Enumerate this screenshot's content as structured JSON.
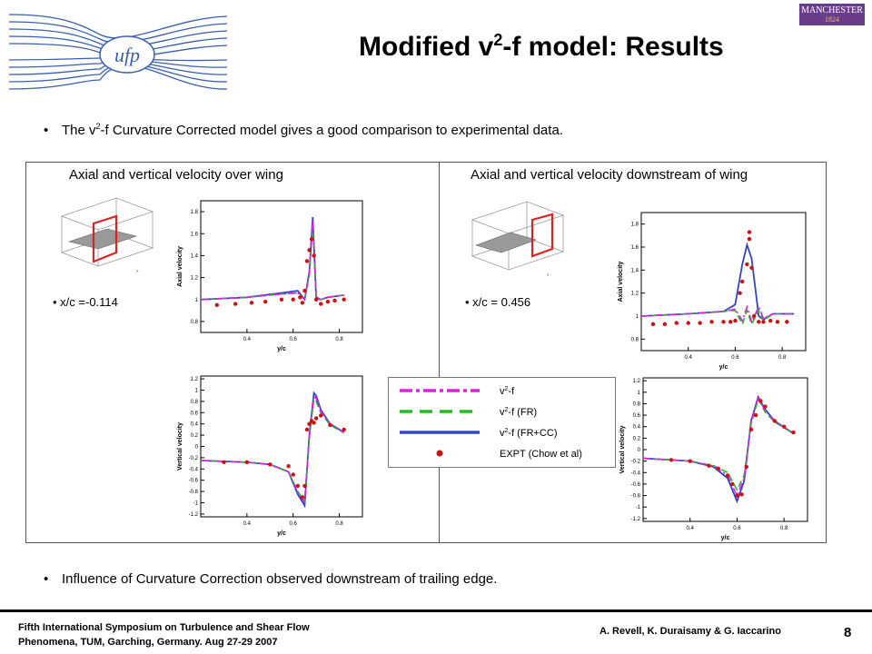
{
  "header": {
    "title_prefix": "Modified v",
    "title_sup": "2",
    "title_suffix": "-f model: Results",
    "left_logo_text": "ufp",
    "right_logo_text": "MANCHESTER",
    "right_logo_year": "1824"
  },
  "bullets": {
    "first": {
      "pre": "The v",
      "sup": "2",
      "post": "-f Curvature Corrected model gives a good comparison to experimental data."
    },
    "second": "Influence of Curvature Correction observed downstream of trailing edge."
  },
  "panels": {
    "left": {
      "title": "Axial and vertical velocity over wing",
      "location": "x/c =-0.114"
    },
    "right": {
      "title": "Axial and vertical velocity downstream of wing",
      "location": "x/c = 0.456"
    }
  },
  "axes_text": {
    "x_label": "y/c",
    "axial_label": "Axial velocity",
    "vertical_label": "Vertical velocity",
    "x_ticks": [
      "0.4",
      "0.6",
      "0.8"
    ],
    "axial_ticks": [
      "0.8",
      "1",
      "1.2",
      "1.4",
      "1.6",
      "1.8"
    ],
    "vertical_ticks": [
      "-1.2",
      "-1",
      "-0.8",
      "-0.6",
      "-0.4",
      "-0.2",
      "0",
      "0.2",
      "0.4",
      "0.6",
      "0.8",
      "1",
      "1.2"
    ]
  },
  "legend": {
    "entries": [
      {
        "pre": "v",
        "sup": "2",
        "post": "-f",
        "color": "#dd22dd",
        "style": "dashdot"
      },
      {
        "pre": "v",
        "sup": "2",
        "post": "-f (FR)",
        "color": "#22bb22",
        "style": "dash"
      },
      {
        "pre": "v",
        "sup": "2",
        "post": "-f (FR+CC)",
        "color": "#3344cc",
        "style": "solid"
      },
      {
        "pre": "",
        "sup": "",
        "post": "EXPT (Chow et al)",
        "color": "#cc1111",
        "style": "dot"
      }
    ]
  },
  "colors": {
    "v2f": "#dd22dd",
    "v2f_fr": "#22bb22",
    "v2f_frcc": "#3344cc",
    "expt": "#cc1111"
  },
  "chart_data": [
    {
      "type": "line",
      "id": "axial-left",
      "xlabel": "y/c",
      "ylabel": "Axial velocity",
      "xlim": [
        0.2,
        0.9
      ],
      "ylim": [
        0.7,
        1.9
      ],
      "xticks": [
        0.4,
        0.6,
        0.8
      ],
      "yticks": [
        0.8,
        1.0,
        1.2,
        1.4,
        1.6,
        1.8
      ],
      "series": [
        {
          "name": "v2-f (FR+CC)",
          "style": "solid",
          "x": [
            0.2,
            0.4,
            0.55,
            0.62,
            0.65,
            0.67,
            0.685,
            0.7,
            0.72,
            0.75,
            0.82
          ],
          "y": [
            1.0,
            1.02,
            1.06,
            1.08,
            1.0,
            1.25,
            1.75,
            1.02,
            1.0,
            1.02,
            1.04
          ]
        },
        {
          "name": "v2-f (FR)",
          "style": "dash",
          "x": [
            0.2,
            0.4,
            0.55,
            0.62,
            0.65,
            0.67,
            0.685,
            0.7,
            0.72,
            0.75,
            0.82
          ],
          "y": [
            1.0,
            1.02,
            1.05,
            1.06,
            1.0,
            1.22,
            1.68,
            1.0,
            1.0,
            1.02,
            1.04
          ]
        },
        {
          "name": "v2-f",
          "style": "dashdot",
          "x": [
            0.2,
            0.4,
            0.55,
            0.62,
            0.65,
            0.67,
            0.685,
            0.7,
            0.72,
            0.75,
            0.82
          ],
          "y": [
            1.0,
            1.02,
            1.05,
            1.06,
            1.0,
            1.24,
            1.72,
            1.01,
            1.0,
            1.02,
            1.04
          ]
        },
        {
          "name": "EXPT (Chow et al)",
          "style": "dot",
          "x": [
            0.27,
            0.35,
            0.42,
            0.48,
            0.55,
            0.6,
            0.63,
            0.64,
            0.65,
            0.66,
            0.67,
            0.68,
            0.69,
            0.7,
            0.72,
            0.75,
            0.78,
            0.82
          ],
          "y": [
            0.95,
            0.96,
            0.97,
            0.98,
            1.0,
            1.0,
            1.02,
            0.97,
            1.08,
            1.35,
            1.45,
            1.55,
            1.4,
            1.0,
            0.96,
            0.98,
            0.99,
            1.0
          ]
        }
      ]
    },
    {
      "type": "line",
      "id": "vertical-left",
      "xlabel": "y/c",
      "ylabel": "Vertical velocity",
      "xlim": [
        0.2,
        0.9
      ],
      "ylim": [
        -1.25,
        1.25
      ],
      "xticks": [
        0.4,
        0.6,
        0.8
      ],
      "yticks": [
        -1.2,
        -1,
        -0.8,
        -0.6,
        -0.4,
        -0.2,
        0,
        0.2,
        0.4,
        0.6,
        0.8,
        1,
        1.2
      ],
      "series": [
        {
          "name": "v2-f (FR+CC)",
          "style": "solid",
          "x": [
            0.2,
            0.4,
            0.5,
            0.58,
            0.62,
            0.65,
            0.67,
            0.69,
            0.7,
            0.72,
            0.76,
            0.82
          ],
          "y": [
            -0.25,
            -0.28,
            -0.32,
            -0.45,
            -0.85,
            -1.05,
            0.2,
            0.95,
            0.9,
            0.65,
            0.4,
            0.25
          ]
        },
        {
          "name": "v2-f (FR)",
          "style": "dash",
          "x": [
            0.2,
            0.4,
            0.5,
            0.58,
            0.62,
            0.65,
            0.67,
            0.69,
            0.7,
            0.72,
            0.76,
            0.82
          ],
          "y": [
            -0.25,
            -0.28,
            -0.32,
            -0.45,
            -0.8,
            -0.98,
            0.15,
            0.85,
            0.8,
            0.6,
            0.38,
            0.24
          ]
        },
        {
          "name": "v2-f",
          "style": "dashdot",
          "x": [
            0.2,
            0.4,
            0.5,
            0.58,
            0.62,
            0.65,
            0.67,
            0.69,
            0.7,
            0.72,
            0.76,
            0.82
          ],
          "y": [
            -0.25,
            -0.28,
            -0.32,
            -0.45,
            -0.82,
            -1.0,
            0.18,
            0.9,
            0.85,
            0.62,
            0.39,
            0.25
          ]
        },
        {
          "name": "EXPT (Chow et al)",
          "style": "dot",
          "x": [
            0.3,
            0.4,
            0.5,
            0.58,
            0.6,
            0.62,
            0.64,
            0.65,
            0.66,
            0.67,
            0.68,
            0.69,
            0.7,
            0.72,
            0.76,
            0.82
          ],
          "y": [
            -0.28,
            -0.28,
            -0.32,
            -0.35,
            -0.5,
            -0.7,
            -0.9,
            -0.7,
            0.3,
            0.4,
            0.45,
            0.42,
            0.5,
            0.55,
            0.38,
            0.3
          ]
        }
      ]
    },
    {
      "type": "line",
      "id": "axial-right",
      "xlabel": "y/c",
      "ylabel": "Axial velocity",
      "xlim": [
        0.2,
        0.9
      ],
      "ylim": [
        0.7,
        1.9
      ],
      "xticks": [
        0.4,
        0.6,
        0.8
      ],
      "yticks": [
        0.8,
        1.0,
        1.2,
        1.4,
        1.6,
        1.8
      ],
      "series": [
        {
          "name": "v2-f (FR+CC)",
          "style": "solid",
          "x": [
            0.2,
            0.4,
            0.55,
            0.6,
            0.63,
            0.65,
            0.67,
            0.7,
            0.72,
            0.76,
            0.85
          ],
          "y": [
            1.0,
            1.02,
            1.04,
            1.1,
            1.45,
            1.62,
            1.5,
            1.0,
            0.97,
            1.02,
            1.02
          ]
        },
        {
          "name": "v2-f (FR)",
          "style": "dash",
          "x": [
            0.2,
            0.4,
            0.55,
            0.6,
            0.63,
            0.65,
            0.67,
            0.7,
            0.72,
            0.76,
            0.85
          ],
          "y": [
            1.0,
            1.02,
            1.04,
            1.05,
            0.93,
            1.05,
            0.93,
            1.05,
            0.96,
            1.02,
            1.02
          ]
        },
        {
          "name": "v2-f",
          "style": "dashdot",
          "x": [
            0.2,
            0.4,
            0.55,
            0.6,
            0.63,
            0.65,
            0.67,
            0.7,
            0.72,
            0.76,
            0.85
          ],
          "y": [
            1.0,
            1.02,
            1.04,
            1.06,
            0.96,
            1.08,
            0.95,
            1.08,
            0.98,
            1.02,
            1.02
          ]
        },
        {
          "name": "EXPT (Chow et al)",
          "style": "dot",
          "x": [
            0.25,
            0.3,
            0.35,
            0.4,
            0.45,
            0.5,
            0.55,
            0.58,
            0.6,
            0.62,
            0.63,
            0.65,
            0.66,
            0.66,
            0.67,
            0.68,
            0.7,
            0.72,
            0.75,
            0.78,
            0.82
          ],
          "y": [
            0.93,
            0.93,
            0.94,
            0.94,
            0.94,
            0.95,
            0.95,
            0.95,
            0.96,
            1.2,
            1.3,
            1.45,
            1.73,
            1.67,
            1.42,
            1.0,
            0.95,
            0.95,
            0.96,
            0.95,
            0.95
          ]
        }
      ]
    },
    {
      "type": "line",
      "id": "vertical-right",
      "xlabel": "y/c",
      "ylabel": "Vertical velocity",
      "xlim": [
        0.2,
        0.9
      ],
      "ylim": [
        -1.25,
        1.25
      ],
      "xticks": [
        0.4,
        0.6,
        0.8
      ],
      "yticks": [
        -1.2,
        -1,
        -0.8,
        -0.6,
        -0.4,
        -0.2,
        0,
        0.2,
        0.4,
        0.6,
        0.8,
        1,
        1.2
      ],
      "series": [
        {
          "name": "v2-f (FR+CC)",
          "style": "solid",
          "x": [
            0.2,
            0.4,
            0.5,
            0.56,
            0.6,
            0.63,
            0.66,
            0.69,
            0.72,
            0.76,
            0.84
          ],
          "y": [
            -0.15,
            -0.2,
            -0.3,
            -0.5,
            -0.9,
            -0.55,
            0.5,
            0.92,
            0.7,
            0.5,
            0.28
          ]
        },
        {
          "name": "v2-f (FR)",
          "style": "dash",
          "x": [
            0.2,
            0.4,
            0.5,
            0.56,
            0.6,
            0.63,
            0.66,
            0.69,
            0.72,
            0.76,
            0.84
          ],
          "y": [
            -0.15,
            -0.2,
            -0.28,
            -0.4,
            -0.7,
            -0.45,
            0.45,
            0.88,
            0.65,
            0.48,
            0.28
          ]
        },
        {
          "name": "v2-f",
          "style": "dashdot",
          "x": [
            0.2,
            0.4,
            0.5,
            0.56,
            0.6,
            0.63,
            0.66,
            0.69,
            0.72,
            0.76,
            0.84
          ],
          "y": [
            -0.15,
            -0.2,
            -0.29,
            -0.45,
            -0.8,
            -0.5,
            0.48,
            0.9,
            0.68,
            0.49,
            0.28
          ]
        },
        {
          "name": "EXPT (Chow et al)",
          "style": "dot",
          "x": [
            0.32,
            0.4,
            0.48,
            0.52,
            0.56,
            0.58,
            0.6,
            0.62,
            0.64,
            0.66,
            0.68,
            0.7,
            0.72,
            0.76,
            0.8,
            0.84
          ],
          "y": [
            -0.18,
            -0.2,
            -0.28,
            -0.33,
            -0.45,
            -0.6,
            -0.8,
            -0.78,
            -0.3,
            0.35,
            0.6,
            0.85,
            0.75,
            0.5,
            0.4,
            0.3
          ]
        }
      ]
    }
  ]
}
